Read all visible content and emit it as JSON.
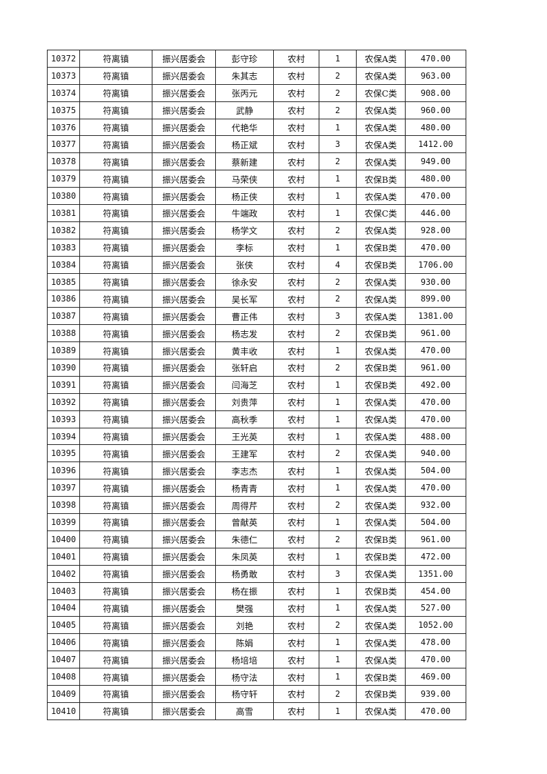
{
  "table": {
    "rows": [
      [
        "10372",
        "符离镇",
        "振兴居委会",
        "彭守珍",
        "农村",
        "1",
        "农保A类",
        "470.00"
      ],
      [
        "10373",
        "符离镇",
        "振兴居委会",
        "朱其志",
        "农村",
        "2",
        "农保A类",
        "963.00"
      ],
      [
        "10374",
        "符离镇",
        "振兴居委会",
        "张丙元",
        "农村",
        "2",
        "农保C类",
        "908.00"
      ],
      [
        "10375",
        "符离镇",
        "振兴居委会",
        "武静",
        "农村",
        "2",
        "农保A类",
        "960.00"
      ],
      [
        "10376",
        "符离镇",
        "振兴居委会",
        "代艳华",
        "农村",
        "1",
        "农保A类",
        "480.00"
      ],
      [
        "10377",
        "符离镇",
        "振兴居委会",
        "杨正斌",
        "农村",
        "3",
        "农保A类",
        "1412.00"
      ],
      [
        "10378",
        "符离镇",
        "振兴居委会",
        "蔡新建",
        "农村",
        "2",
        "农保A类",
        "949.00"
      ],
      [
        "10379",
        "符离镇",
        "振兴居委会",
        "马荣侠",
        "农村",
        "1",
        "农保B类",
        "480.00"
      ],
      [
        "10380",
        "符离镇",
        "振兴居委会",
        "杨正侠",
        "农村",
        "1",
        "农保A类",
        "470.00"
      ],
      [
        "10381",
        "符离镇",
        "振兴居委会",
        "牛端政",
        "农村",
        "1",
        "农保C类",
        "446.00"
      ],
      [
        "10382",
        "符离镇",
        "振兴居委会",
        "杨学文",
        "农村",
        "2",
        "农保A类",
        "928.00"
      ],
      [
        "10383",
        "符离镇",
        "振兴居委会",
        "李标",
        "农村",
        "1",
        "农保B类",
        "470.00"
      ],
      [
        "10384",
        "符离镇",
        "振兴居委会",
        "张侠",
        "农村",
        "4",
        "农保B类",
        "1706.00"
      ],
      [
        "10385",
        "符离镇",
        "振兴居委会",
        "徐永安",
        "农村",
        "2",
        "农保A类",
        "930.00"
      ],
      [
        "10386",
        "符离镇",
        "振兴居委会",
        "吴长军",
        "农村",
        "2",
        "农保A类",
        "899.00"
      ],
      [
        "10387",
        "符离镇",
        "振兴居委会",
        "曹正伟",
        "农村",
        "3",
        "农保A类",
        "1381.00"
      ],
      [
        "10388",
        "符离镇",
        "振兴居委会",
        "杨志发",
        "农村",
        "2",
        "农保B类",
        "961.00"
      ],
      [
        "10389",
        "符离镇",
        "振兴居委会",
        "黄丰收",
        "农村",
        "1",
        "农保A类",
        "470.00"
      ],
      [
        "10390",
        "符离镇",
        "振兴居委会",
        "张轩启",
        "农村",
        "2",
        "农保B类",
        "961.00"
      ],
      [
        "10391",
        "符离镇",
        "振兴居委会",
        "闫海芝",
        "农村",
        "1",
        "农保B类",
        "492.00"
      ],
      [
        "10392",
        "符离镇",
        "振兴居委会",
        "刘贵萍",
        "农村",
        "1",
        "农保A类",
        "470.00"
      ],
      [
        "10393",
        "符离镇",
        "振兴居委会",
        "高秋季",
        "农村",
        "1",
        "农保A类",
        "470.00"
      ],
      [
        "10394",
        "符离镇",
        "振兴居委会",
        "王光英",
        "农村",
        "1",
        "农保A类",
        "488.00"
      ],
      [
        "10395",
        "符离镇",
        "振兴居委会",
        "王建军",
        "农村",
        "2",
        "农保A类",
        "940.00"
      ],
      [
        "10396",
        "符离镇",
        "振兴居委会",
        "李志杰",
        "农村",
        "1",
        "农保A类",
        "504.00"
      ],
      [
        "10397",
        "符离镇",
        "振兴居委会",
        "杨青青",
        "农村",
        "1",
        "农保A类",
        "470.00"
      ],
      [
        "10398",
        "符离镇",
        "振兴居委会",
        "周得芹",
        "农村",
        "2",
        "农保A类",
        "932.00"
      ],
      [
        "10399",
        "符离镇",
        "振兴居委会",
        "曾献英",
        "农村",
        "1",
        "农保A类",
        "504.00"
      ],
      [
        "10400",
        "符离镇",
        "振兴居委会",
        "朱德仁",
        "农村",
        "2",
        "农保B类",
        "961.00"
      ],
      [
        "10401",
        "符离镇",
        "振兴居委会",
        "朱凤英",
        "农村",
        "1",
        "农保B类",
        "472.00"
      ],
      [
        "10402",
        "符离镇",
        "振兴居委会",
        "杨勇敢",
        "农村",
        "3",
        "农保A类",
        "1351.00"
      ],
      [
        "10403",
        "符离镇",
        "振兴居委会",
        "杨在振",
        "农村",
        "1",
        "农保B类",
        "454.00"
      ],
      [
        "10404",
        "符离镇",
        "振兴居委会",
        "樊强",
        "农村",
        "1",
        "农保A类",
        "527.00"
      ],
      [
        "10405",
        "符离镇",
        "振兴居委会",
        "刘艳",
        "农村",
        "2",
        "农保A类",
        "1052.00"
      ],
      [
        "10406",
        "符离镇",
        "振兴居委会",
        "陈娟",
        "农村",
        "1",
        "农保A类",
        "478.00"
      ],
      [
        "10407",
        "符离镇",
        "振兴居委会",
        "杨培培",
        "农村",
        "1",
        "农保A类",
        "470.00"
      ],
      [
        "10408",
        "符离镇",
        "振兴居委会",
        "杨守法",
        "农村",
        "1",
        "农保B类",
        "469.00"
      ],
      [
        "10409",
        "符离镇",
        "振兴居委会",
        "杨守轩",
        "农村",
        "2",
        "农保B类",
        "939.00"
      ],
      [
        "10410",
        "符离镇",
        "振兴居委会",
        "高雪",
        "农村",
        "1",
        "农保A类",
        "470.00"
      ]
    ]
  }
}
